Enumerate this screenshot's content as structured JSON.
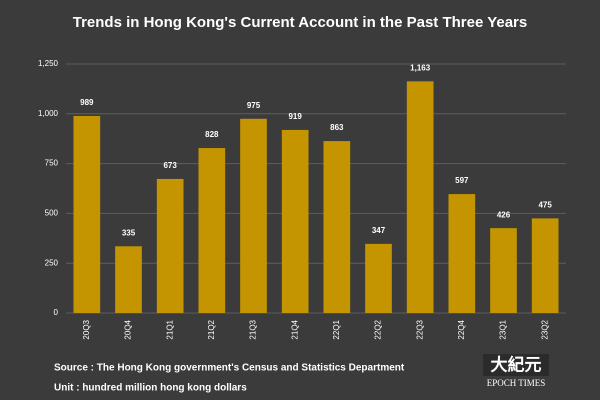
{
  "chart_data": {
    "type": "bar",
    "title": "Trends in Hong Kong's Current Account in the Past Three Years",
    "categories": [
      "20Q3",
      "20Q4",
      "21Q1",
      "21Q2",
      "21Q3",
      "21Q4",
      "22Q1",
      "22Q2",
      "22Q3",
      "22Q4",
      "23Q1",
      "23Q2"
    ],
    "values": [
      989,
      335,
      673,
      828,
      975,
      919,
      863,
      347,
      1163,
      597,
      426,
      475
    ],
    "value_labels": [
      "989",
      "335",
      "673",
      "828",
      "975",
      "919",
      "863",
      "347",
      "1,163",
      "597",
      "426",
      "475"
    ],
    "color": "#c49500",
    "ylim": [
      0,
      1250
    ],
    "yticks": [
      0,
      250,
      500,
      750,
      {
        "value": 1000,
        "label": "1,000"
      },
      {
        "value": 1250,
        "label": "1,250"
      }
    ],
    "grid": true,
    "source": "Source : The Hong Kong government's Census and Statistics Department",
    "unit": "Unit : hundred million hong kong dollars"
  },
  "logo": {
    "chinese": "大紀元",
    "english": "EPOCH TIMES"
  }
}
